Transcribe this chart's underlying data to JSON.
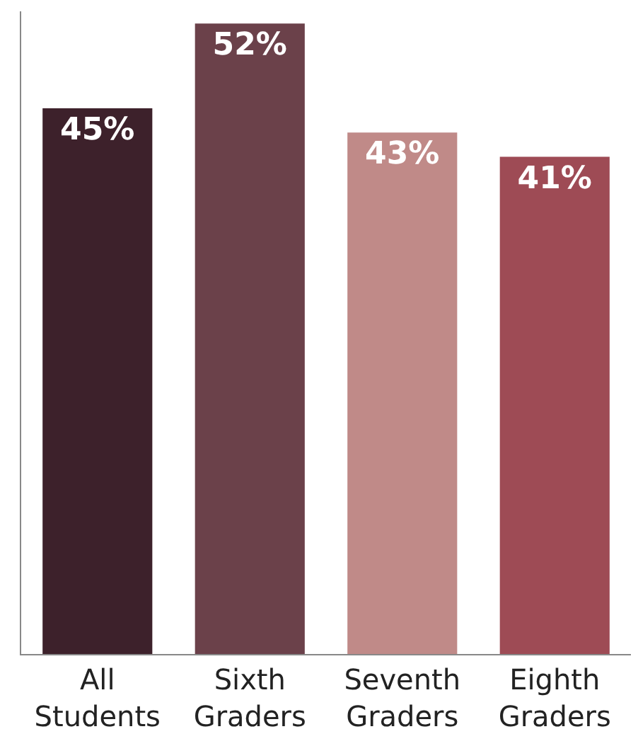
{
  "chart_data": {
    "type": "bar",
    "categories": [
      "All Students",
      "Sixth Graders",
      "Seventh Graders",
      "Eighth Graders"
    ],
    "values": [
      45,
      52,
      43,
      41
    ],
    "colors": [
      "#3d212b",
      "#6b414a",
      "#c08a88",
      "#9e4b55"
    ],
    "value_labels": [
      "45%",
      "52%",
      "43%",
      "41%"
    ],
    "ylim": [
      0,
      53
    ],
    "tick_labels": "x"
  }
}
